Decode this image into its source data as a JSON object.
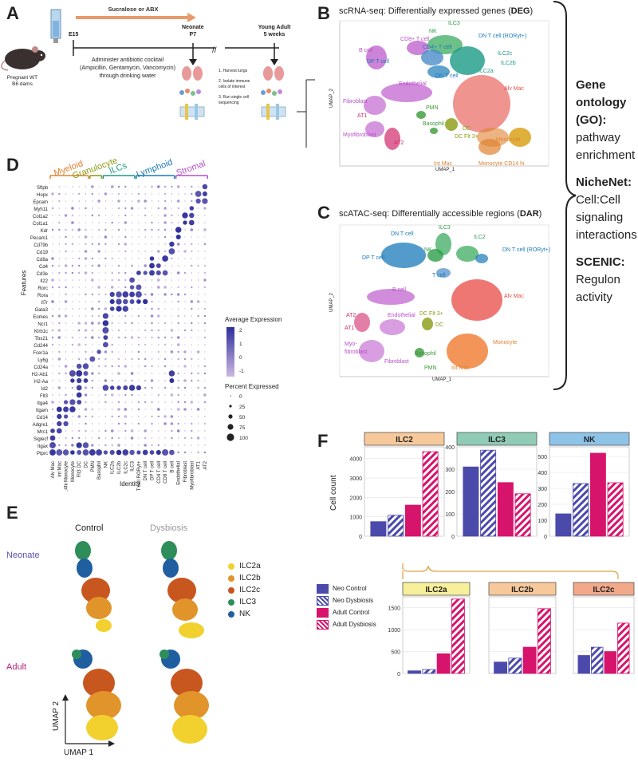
{
  "panel_labels": {
    "a": "A",
    "b": "B",
    "c": "C",
    "d": "D",
    "e": "E",
    "f": "F"
  },
  "panel_a": {
    "treatment": "Sucralose or ABX",
    "mouse_label": "Pregnant WT\nB6 dams",
    "mouse_line1": "Pregnant WT",
    "mouse_line2": "B6 dams",
    "e15": "E15",
    "neonate": "Neonate",
    "p7": "P7",
    "young_adult": "Young Adult",
    "weeks": "5 weeks",
    "administer_line1": "Administer antibiotic cocktail",
    "administer_line2": "(Ampicillin, Gentamycin, Vancomycin)",
    "administer_line3": "through drinking water",
    "step1": "1.  Harvest lungs",
    "step2a": "2. Isolate immune",
    "step2b": "cells of interest",
    "step3a": "3. Run single cell",
    "step3b": "sequencing"
  },
  "panel_b": {
    "title_prefix": "scRNA-seq: Differentially expressed genes (",
    "title_bold": "DEG",
    "title_suffix": ")",
    "xaxis": "UMAP_1",
    "yaxis": "UMAP_2",
    "clusters": [
      {
        "label": "NK",
        "color": "#2e9e4a"
      },
      {
        "label": "ILC3",
        "color": "#2e9e4a"
      },
      {
        "label": "CD8+ T cell",
        "color": "#b84fc8"
      },
      {
        "label": "DN T cell (RORyt+)",
        "color": "#1a7ab8"
      },
      {
        "label": "B cell",
        "color": "#b84fc8"
      },
      {
        "label": "CD4+ T cell",
        "color": "#1a7ab8"
      },
      {
        "label": "ILC2c",
        "color": "#1a9a86"
      },
      {
        "label": "DP T cell",
        "color": "#1a7ab8"
      },
      {
        "label": "ILC2b",
        "color": "#1a9a86"
      },
      {
        "label": "DN T cell",
        "color": "#1a7ab8"
      },
      {
        "label": "ILC2a",
        "color": "#1a9a86"
      },
      {
        "label": "Alv Mac",
        "color": "#e0524e"
      },
      {
        "label": "Endothelial",
        "color": "#b84fc8"
      },
      {
        "label": "Fibroblast",
        "color": "#b84fc8"
      },
      {
        "label": "AT1",
        "color": "#d02a6a"
      },
      {
        "label": "PMN",
        "color": "#3a9a3a"
      },
      {
        "label": "Basophil",
        "color": "#3a9a3a"
      },
      {
        "label": "DC",
        "color": "#8a9a10"
      },
      {
        "label": "DC Flt 3+",
        "color": "#8a9a10"
      },
      {
        "label": "Myofibroblast",
        "color": "#b84fc8"
      },
      {
        "label": "AT2",
        "color": "#d02a6a"
      },
      {
        "label": "Monocyte",
        "color": "#e0822e"
      },
      {
        "label": "Int Mac",
        "color": "#e0822e"
      },
      {
        "label": "Monocyte CD14 hi",
        "color": "#e0822e"
      }
    ],
    "xticks": [
      "-10",
      "0",
      "10"
    ],
    "yticks": [
      "10",
      "0",
      "-10"
    ]
  },
  "panel_c": {
    "title_prefix": "scATAC-seq: Differentially accessible regions (",
    "title_bold": "DAR",
    "title_suffix": ")",
    "xaxis": "UMAP_1",
    "yaxis": "UMAP_2",
    "clusters": [
      {
        "label": "ILC3",
        "color": "#2e9e4a"
      },
      {
        "label": "DN T cell",
        "color": "#1a7ab8"
      },
      {
        "label": "ILC2",
        "color": "#2e9e4a"
      },
      {
        "label": "NK",
        "color": "#2e9e4a"
      },
      {
        "label": "DN T cell (RORyt+)",
        "color": "#1a7ab8"
      },
      {
        "label": "DP T cell",
        "color": "#1a7ab8"
      },
      {
        "label": "T cell",
        "color": "#1a7ab8"
      },
      {
        "label": "B cell",
        "color": "#b84fc8"
      },
      {
        "label": "Alv Mac",
        "color": "#e0524e"
      },
      {
        "label": "AT2",
        "color": "#d02a6a"
      },
      {
        "label": "DC Flt 3+",
        "color": "#8a9a10"
      },
      {
        "label": "Endothelial",
        "color": "#b84fc8"
      },
      {
        "label": "AT1",
        "color": "#d02a6a"
      },
      {
        "label": "DC",
        "color": "#8a9a10"
      },
      {
        "label": "Monocyte",
        "color": "#e0822e"
      },
      {
        "label": "Myo-",
        "color": "#b84fc8"
      },
      {
        "label": "fibroblast",
        "color": "#b84fc8"
      },
      {
        "label": "Basophil",
        "color": "#3a9a3a"
      },
      {
        "label": "Fibroblast",
        "color": "#b84fc8"
      },
      {
        "label": "PMN",
        "color": "#3a9a3a"
      },
      {
        "label": "Int Mac",
        "color": "#e0822e"
      }
    ],
    "xticks": [
      "-15",
      "-10",
      "-5",
      "0",
      "5",
      "10",
      "15"
    ],
    "yticks": [
      "10",
      "5",
      "0",
      "-5",
      "-10"
    ]
  },
  "right_text": {
    "go_1": "Gene",
    "go_2": "ontology",
    "go_3": "(GO):",
    "go_4": "pathway",
    "go_5": "enrichment",
    "nn_1": "NicheNet:",
    "nn_2": "Cell:Cell",
    "nn_3": "signaling",
    "nn_4": "interactions",
    "sc_1": "SCENIC:",
    "sc_2": "Regulon",
    "sc_3": "activity"
  },
  "panel_d": {
    "groups": [
      {
        "label": "Myeloid",
        "color": "#e0822e"
      },
      {
        "label": "Granulocyte",
        "color": "#8a9a10"
      },
      {
        "label": "ILCs",
        "color": "#1a9a86"
      },
      {
        "label": "Lymphoid",
        "color": "#1a7ab8"
      },
      {
        "label": "Stromal",
        "color": "#b84fc8"
      }
    ],
    "features": [
      "Sftpb",
      "Hopx",
      "Epcam",
      "Myh11",
      "Col1a2",
      "Col1a1",
      "Kdr",
      "Pecam1",
      "Cd79b",
      "Cd19",
      "Cd8a",
      "Cd4",
      "Cd3e",
      "Il22",
      "Rorc",
      "Rora",
      "Il7r",
      "Gata3",
      "Eomes",
      "Ncr1",
      "Klrb1c",
      "Tbx21",
      "Cd244",
      "Fcer1a",
      "Ly6g",
      "Cd24a",
      "H2-Ab1",
      "H2-Aa",
      "Id2",
      "Flt3",
      "Itga4",
      "Itgam",
      "Cd14",
      "Adgre1",
      "Mrc1",
      "Siglecf",
      "Itgax",
      "Ptprc"
    ],
    "identities": [
      "Alv Mac",
      "Int Mac",
      "CD14hi Monocyte",
      "Monocyte",
      "Flt3 DC",
      "DC",
      "PMN",
      "Basophil",
      "NK",
      "ILC2a",
      "ILC2b",
      "ILC2c",
      "ILC3",
      "DN T cell RORyt+",
      "DN T cell",
      "DP T cell",
      "CD4 T cell",
      "CD8 T cell",
      "B cell",
      "Endothelial",
      "Fibroblast",
      "Myofibroblast",
      "AT1",
      "AT2"
    ],
    "xlabel": "Identity",
    "ylabel": "Features",
    "legend_avg_title": "Average Expression",
    "avg_ticks": [
      "2",
      "1",
      "0",
      "-1"
    ],
    "legend_pct_title": "Percent Expressed",
    "pct_ticks": [
      "0",
      "25",
      "50",
      "75",
      "100"
    ],
    "colors": {
      "high": "#2e2f9c",
      "low": "#cdb8e2"
    }
  },
  "panel_e": {
    "col_control": "Control",
    "col_dysbiosis": "Dysbiosis",
    "row_neonate": "Neonate",
    "row_adult": "Adult",
    "xaxis": "UMAP 1",
    "yaxis": "UMAP 2",
    "legend": [
      {
        "label": "ILC2a",
        "color": "#f2d12e"
      },
      {
        "label": "ILC2b",
        "color": "#e0942a"
      },
      {
        "label": "ILC2c",
        "color": "#c8561f"
      },
      {
        "label": "ILC3",
        "color": "#2e8e5a"
      },
      {
        "label": "NK",
        "color": "#1f5fa0"
      }
    ]
  },
  "panel_f": {
    "ylabel": "Cell count",
    "legend": [
      {
        "label": "Neo Control",
        "color": "#4b4aab",
        "hatched": false
      },
      {
        "label": "Neo Dysbiosis",
        "color": "#4b4aab",
        "hatched": true
      },
      {
        "label": "Adult Control",
        "color": "#d6146c",
        "hatched": false
      },
      {
        "label": "Adult Dysbiosis",
        "color": "#d6146c",
        "hatched": true
      }
    ]
  },
  "chart_data": [
    {
      "type": "bar",
      "title": "ILC2",
      "header_color": "#f7c99a",
      "categories": [
        "Neo Control",
        "Neo Dysbiosis",
        "Adult Control",
        "Adult Dysbiosis"
      ],
      "values": [
        750,
        1080,
        1600,
        4350
      ],
      "ylim": [
        0,
        4600
      ],
      "yticks": [
        "0",
        "1000",
        "2000",
        "3000",
        "4000"
      ],
      "ylabel": "Cell count"
    },
    {
      "type": "bar",
      "title": "ILC3",
      "header_color": "#8fcbb5",
      "categories": [
        "Neo Control",
        "Neo Dysbiosis",
        "Adult Control",
        "Adult Dysbiosis"
      ],
      "values": [
        310,
        385,
        240,
        190
      ],
      "ylim": [
        0,
        400
      ],
      "yticks": [
        "0",
        "100",
        "200",
        "300",
        "400"
      ],
      "ylabel": "Cell count"
    },
    {
      "type": "bar",
      "title": "NK",
      "header_color": "#8ec3e8",
      "categories": [
        "Neo Control",
        "Neo Dysbiosis",
        "Adult Control",
        "Adult Dysbiosis"
      ],
      "values": [
        140,
        330,
        520,
        335
      ],
      "ylim": [
        0,
        560
      ],
      "yticks": [
        "0",
        "100",
        "200",
        "300",
        "400",
        "500"
      ],
      "ylabel": "Cell count"
    },
    {
      "type": "bar",
      "title": "ILC2a",
      "header_color": "#f7ef9a",
      "categories": [
        "Neo Control",
        "Neo Dysbiosis",
        "Adult Control",
        "Adult Dysbiosis"
      ],
      "values": [
        60,
        90,
        450,
        1700
      ],
      "ylim": [
        0,
        1750
      ],
      "yticks": [
        "0",
        "500",
        "1000",
        "1500"
      ],
      "ylabel": "Cell count"
    },
    {
      "type": "bar",
      "title": "ILC2b",
      "header_color": "#f7c99a",
      "categories": [
        "Neo Control",
        "Neo Dysbiosis",
        "Adult Control",
        "Adult Dysbiosis"
      ],
      "values": [
        260,
        350,
        600,
        1480
      ],
      "ylim": [
        0,
        1750
      ],
      "yticks": [],
      "ylabel": ""
    },
    {
      "type": "bar",
      "title": "ILC2c",
      "header_color": "#f2a98a",
      "categories": [
        "Neo Control",
        "Neo Dysbiosis",
        "Adult Control",
        "Adult Dysbiosis"
      ],
      "values": [
        410,
        600,
        500,
        1150
      ],
      "ylim": [
        0,
        1750
      ],
      "yticks": [],
      "ylabel": ""
    }
  ]
}
